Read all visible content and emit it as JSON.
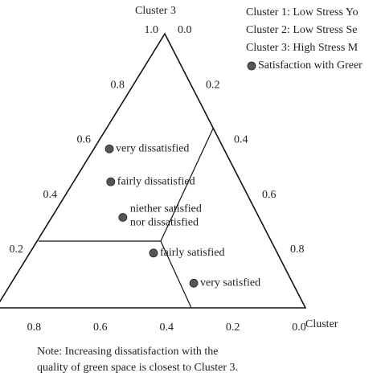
{
  "chart_data": {
    "type": "ternary",
    "axis_top_label": "Cluster 3",
    "axis_right_label": "Cluster",
    "legend": [
      "Cluster 1: Low Stress Yo",
      "Cluster 2: Low Stress Se",
      "Cluster 3: High Stress M"
    ],
    "series": [
      {
        "name": "Satisfaction with Greer",
        "color": "#555555",
        "labels": [
          "very dissatisfied",
          "fairly dissatisfied",
          "niether satisfied nor dissatisfied",
          "fairly satisfied",
          "very satisfied"
        ],
        "cluster1": [
          0.37,
          0.42,
          0.44,
          0.4,
          0.32
        ],
        "cluster3": [
          0.58,
          0.46,
          0.33,
          0.2,
          0.09
        ]
      }
    ],
    "left_ticks": [
      0.2,
      0.4,
      0.6,
      0.8,
      {
        "value": 1,
        "label": "1.0"
      }
    ],
    "right_ticks": [
      {
        "value": 0,
        "label": "0.0"
      },
      0.2,
      0.4,
      0.6,
      0.8
    ],
    "bottom_ticks": [
      0.8,
      0.6,
      0.4,
      0.2,
      {
        "value": 0,
        "label": "0.0"
      }
    ],
    "note": [
      "Note: Increasing dissatisfaction with the",
      "quality of green space is closest to Cluster 3."
    ]
  }
}
